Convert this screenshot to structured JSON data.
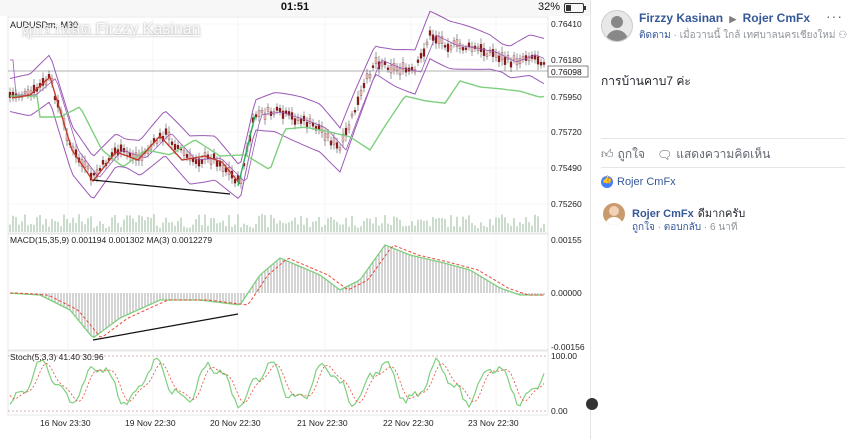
{
  "status": {
    "time": "01:51",
    "battery": "32%"
  },
  "watermark": "ดูกราฟสด Firzzy Kasinan",
  "chart": {
    "symbol": "AUDUSDm, M30",
    "macd_label": "MACD(15,35,9) 0.001194 0.001302 MA(3) 0.0012279",
    "stoch_label": "Stoch(5,3,3) 41.40 30.96",
    "price_ticks": [
      "0.76410",
      "0.76180",
      "0.75950",
      "0.75720",
      "0.75490",
      "0.75260"
    ],
    "current_price": "0.76098",
    "macd_ticks": [
      "0.00155",
      "0.00000",
      "-0.00156"
    ],
    "stoch_ticks": [
      "100.00",
      "0.00"
    ],
    "time_labels": [
      "16 Nov 23:30",
      "19 Nov 22:30",
      "20 Nov 22:30",
      "21 Nov 22:30",
      "22 Nov 22:30",
      "23 Nov 22:30"
    ],
    "colors": {
      "upper_band": "#9b59b6",
      "ma_green": "#7ed07e",
      "trend_red": "#c0392b",
      "signal_red": "#e74c3c",
      "trend_black": "#111111"
    }
  },
  "post": {
    "author": "Firzzy Kasinan",
    "recipient": "Rojer CmFx",
    "follow": "ติดตาม",
    "meta": "เมื่อวานนี้ ใกล้ เทศบาลนครเชียงใหม่",
    "text": "การบ้านคาบ7 ค่ะ",
    "like_label": "ถูกใจ",
    "comment_label": "แสดงความคิดเห็น",
    "reactions": "Rojer CmFx",
    "comment": {
      "author": "Rojer CmFx",
      "text": "ดีมากครับ",
      "like": "ถูกใจ",
      "reply": "ตอบกลับ",
      "time": "6 นาที"
    }
  }
}
